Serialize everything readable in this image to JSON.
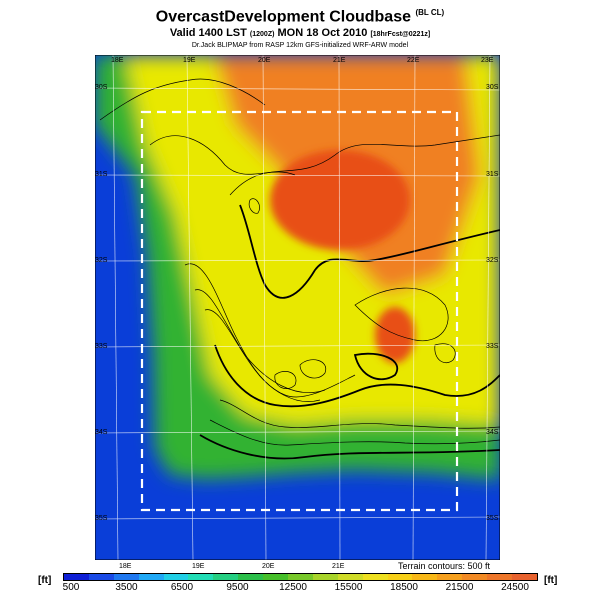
{
  "header": {
    "title": "OvercastDevelopment Cloudbase",
    "title_suffix": "(BL CL)",
    "valid_prefix": "Valid 1400 LST",
    "valid_code": "(1200Z)",
    "valid_date": "MON 18 Oct 2010",
    "forecast_code": "[18hrFcst@0221z]",
    "source": "Dr.Jack BLIPMAP from RASP 12km GFS-initialized WRF-ARW model"
  },
  "map": {
    "lon_labels_top": [
      "18E",
      "19E",
      "20E",
      "21E",
      "22E",
      "23E"
    ],
    "lon_labels_bottom": [
      "18E",
      "19E",
      "20E",
      "21E"
    ],
    "lat_labels_left": [
      "30S",
      "31S",
      "32S",
      "33S",
      "34S",
      "35S"
    ],
    "lat_labels_right": [
      "30S",
      "31S",
      "32S",
      "33S",
      "34S",
      "35S"
    ],
    "terrain_note": "Terrain contours: 500 ft",
    "colors": {
      "ocean": "#0a3ed8",
      "coast_green": "#33b233",
      "interior_yellow": "#e8e800",
      "high_orange": "#f08020",
      "peak_red": "#e85018"
    }
  },
  "colorbar": {
    "unit_left": "[ft]",
    "unit_right": "[ft]",
    "labels": [
      "500",
      "3500",
      "6500",
      "9500",
      "12500",
      "15500",
      "18500",
      "21500",
      "24500"
    ],
    "min": 500,
    "max": 24500,
    "colors": [
      "#0f1fd6",
      "#1a4ae6",
      "#1f78f0",
      "#20a8f5",
      "#21cfe6",
      "#22ddb6",
      "#25cf82",
      "#2cbf4a",
      "#46bf2a",
      "#78c82a",
      "#a8d42a",
      "#d0dc28",
      "#eee020",
      "#f7d018",
      "#f8b818",
      "#f6a01e",
      "#f28a24",
      "#ee762a",
      "#e8622e"
    ]
  }
}
